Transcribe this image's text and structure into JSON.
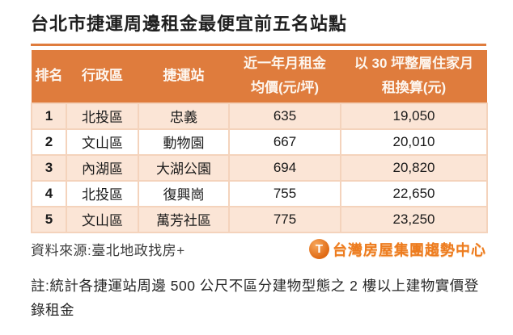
{
  "title": "台北市捷運周邊租金最便宜前五名站點",
  "colors": {
    "accent_orange": "#df7c3d",
    "band_row": "#fbe5d6",
    "cell_border": "#f4d3bc",
    "logo_orange": "#ed7c1f"
  },
  "table": {
    "headers": [
      "排名",
      "行政區",
      "捷運站",
      "近一年月租金\n均價(元/坪)",
      "以 30 坪整層住家月\n租換算(元)"
    ],
    "rows": [
      {
        "rank": "1",
        "district": "北投區",
        "station": "忠義",
        "rent_per_ping": "635",
        "monthly_30ping": "19,050"
      },
      {
        "rank": "2",
        "district": "文山區",
        "station": "動物園",
        "rent_per_ping": "667",
        "monthly_30ping": "20,010"
      },
      {
        "rank": "3",
        "district": "內湖區",
        "station": "大湖公園",
        "rent_per_ping": "694",
        "monthly_30ping": "20,820"
      },
      {
        "rank": "4",
        "district": "北投區",
        "station": "復興崗",
        "rent_per_ping": "755",
        "monthly_30ping": "22,650"
      },
      {
        "rank": "5",
        "district": "文山區",
        "station": "萬芳社區",
        "rent_per_ping": "775",
        "monthly_30ping": "23,250"
      }
    ]
  },
  "footer": {
    "source": "資料來源:臺北地政找房+",
    "logo_icon": "T",
    "logo_text": "台灣房屋集團趨勢中心"
  },
  "note": "註:統計各捷運站周邊 500 公尺不區分建物型態之 2 樓以上建物實價登錄租金",
  "chart_data": {
    "type": "table",
    "title": "台北市捷運周邊租金最便宜前五名站點",
    "columns": [
      "排名",
      "行政區",
      "捷運站",
      "近一年月租金均價(元/坪)",
      "以30坪整層住家月租換算(元)"
    ],
    "rows": [
      [
        1,
        "北投區",
        "忠義",
        635,
        19050
      ],
      [
        2,
        "文山區",
        "動物園",
        667,
        20010
      ],
      [
        3,
        "內湖區",
        "大湖公園",
        694,
        20820
      ],
      [
        4,
        "北投區",
        "復興崗",
        755,
        22650
      ],
      [
        5,
        "文山區",
        "萬芳社區",
        775,
        23250
      ]
    ],
    "source": "臺北地政找房+",
    "note": "統計各捷運站周邊500公尺不區分建物型態之2樓以上建物實價登錄租金"
  }
}
